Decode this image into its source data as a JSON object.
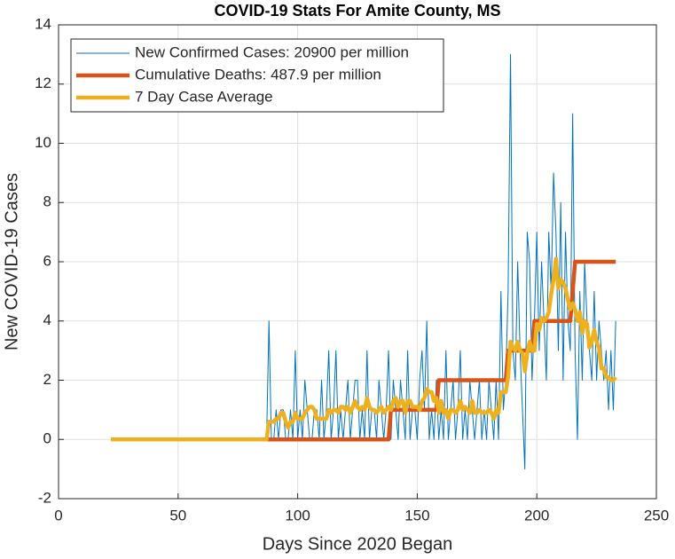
{
  "chart_data": {
    "type": "line",
    "title": "COVID-19 Stats For Amite County, MS",
    "xlabel": "Days Since 2020 Began",
    "ylabel": "New COVID-19 Cases",
    "xlim": [
      0,
      250
    ],
    "xticks": [
      0,
      50,
      100,
      150,
      200,
      250
    ],
    "ylim": [
      -2,
      14
    ],
    "yticks": [
      -2,
      0,
      2,
      4,
      6,
      8,
      10,
      12,
      14
    ],
    "grid": true,
    "legend": "upper left",
    "x": [
      22,
      23,
      24,
      25,
      26,
      27,
      28,
      29,
      30,
      31,
      32,
      33,
      34,
      35,
      36,
      37,
      38,
      39,
      40,
      41,
      42,
      43,
      44,
      45,
      46,
      47,
      48,
      49,
      50,
      51,
      52,
      53,
      54,
      55,
      56,
      57,
      58,
      59,
      60,
      61,
      62,
      63,
      64,
      65,
      66,
      67,
      68,
      69,
      70,
      71,
      72,
      73,
      74,
      75,
      76,
      77,
      78,
      79,
      80,
      81,
      82,
      83,
      84,
      85,
      86,
      87,
      88,
      89,
      90,
      91,
      92,
      93,
      94,
      95,
      96,
      97,
      98,
      99,
      100,
      101,
      102,
      103,
      104,
      105,
      106,
      107,
      108,
      109,
      110,
      111,
      112,
      113,
      114,
      115,
      116,
      117,
      118,
      119,
      120,
      121,
      122,
      123,
      124,
      125,
      126,
      127,
      128,
      129,
      130,
      131,
      132,
      133,
      134,
      135,
      136,
      137,
      138,
      139,
      140,
      141,
      142,
      143,
      144,
      145,
      146,
      147,
      148,
      149,
      150,
      151,
      152,
      153,
      154,
      155,
      156,
      157,
      158,
      159,
      160,
      161,
      162,
      163,
      164,
      165,
      166,
      167,
      168,
      169,
      170,
      171,
      172,
      173,
      174,
      175,
      176,
      177,
      178,
      179,
      180,
      181,
      182,
      183,
      184,
      185,
      186,
      187,
      188,
      189,
      190,
      191,
      192,
      193,
      194,
      195,
      196,
      197,
      198,
      199,
      200,
      201,
      202,
      203,
      204,
      205,
      206,
      207,
      208,
      209,
      210,
      211,
      212,
      213,
      214,
      215,
      216,
      217,
      218,
      219,
      220,
      221,
      222,
      223,
      224,
      225,
      226,
      227,
      228,
      229,
      230,
      231,
      232,
      233
    ],
    "series": [
      {
        "name": "New Confirmed Cases: 20900 per million",
        "color": "#0072BD",
        "values": [
          0,
          0,
          0,
          0,
          0,
          0,
          0,
          0,
          0,
          0,
          0,
          0,
          0,
          0,
          0,
          0,
          0,
          0,
          0,
          0,
          0,
          0,
          0,
          0,
          0,
          0,
          0,
          0,
          0,
          0,
          0,
          0,
          0,
          0,
          0,
          0,
          0,
          0,
          0,
          0,
          0,
          0,
          0,
          0,
          0,
          0,
          0,
          0,
          0,
          0,
          0,
          0,
          0,
          0,
          0,
          0,
          0,
          0,
          0,
          0,
          0,
          0,
          0,
          0,
          0,
          0,
          4,
          0,
          0,
          1,
          0,
          1,
          1,
          0,
          0,
          1,
          0,
          3,
          0,
          1,
          0,
          2,
          1,
          0,
          0,
          1,
          1,
          0,
          2,
          0,
          1,
          3,
          0,
          1,
          3,
          0,
          1,
          0,
          1,
          2,
          0,
          1,
          2,
          2,
          0,
          1,
          0,
          3,
          0,
          1,
          1,
          0,
          2,
          1,
          0,
          1,
          3,
          0,
          2,
          1,
          0,
          2,
          1,
          0,
          3,
          0,
          1,
          1,
          0,
          2,
          3,
          1,
          4,
          0,
          1,
          0,
          2,
          0,
          1,
          0,
          3,
          0,
          1,
          2,
          0,
          1,
          3,
          0,
          1,
          0,
          2,
          1,
          0,
          1,
          2,
          0,
          1,
          0,
          2,
          1,
          0,
          2,
          0,
          5,
          1,
          2,
          5,
          13,
          3,
          2,
          6,
          3,
          1,
          -1,
          7,
          6,
          2,
          4,
          7,
          3,
          6,
          4,
          2,
          7,
          5,
          9,
          7,
          3,
          8,
          2,
          7,
          4,
          3,
          11,
          3,
          0,
          5,
          2,
          6,
          4,
          3,
          2,
          5,
          2,
          4,
          3,
          2,
          3,
          1,
          3,
          1,
          4
        ]
      },
      {
        "name": "Cumulative Deaths: 487.9 per million",
        "color": "#D95319",
        "values": [
          0,
          0,
          0,
          0,
          0,
          0,
          0,
          0,
          0,
          0,
          0,
          0,
          0,
          0,
          0,
          0,
          0,
          0,
          0,
          0,
          0,
          0,
          0,
          0,
          0,
          0,
          0,
          0,
          0,
          0,
          0,
          0,
          0,
          0,
          0,
          0,
          0,
          0,
          0,
          0,
          0,
          0,
          0,
          0,
          0,
          0,
          0,
          0,
          0,
          0,
          0,
          0,
          0,
          0,
          0,
          0,
          0,
          0,
          0,
          0,
          0,
          0,
          0,
          0,
          0,
          0,
          0,
          0,
          0,
          0,
          0,
          0,
          0,
          0,
          0,
          0,
          0,
          0,
          0,
          0,
          0,
          0,
          0,
          0,
          0,
          0,
          0,
          0,
          0,
          0,
          0,
          0,
          0,
          0,
          0,
          0,
          0,
          0,
          0,
          0,
          0,
          0,
          0,
          0,
          0,
          0,
          0,
          0,
          0,
          0,
          0,
          0,
          0,
          0,
          0,
          0,
          0,
          1,
          1,
          1,
          1,
          1,
          1,
          1,
          1,
          1,
          1,
          1,
          1,
          1,
          1,
          1,
          1,
          1,
          1,
          1,
          1,
          2,
          2,
          2,
          2,
          2,
          2,
          2,
          2,
          2,
          2,
          2,
          2,
          2,
          2,
          2,
          2,
          2,
          2,
          2,
          2,
          2,
          2,
          2,
          2,
          2,
          2,
          2,
          2,
          2,
          3,
          3,
          3,
          3,
          3,
          3,
          3,
          3,
          3,
          3,
          3,
          4,
          4,
          4,
          4,
          4,
          4,
          4,
          4,
          4,
          4,
          4,
          4,
          4,
          4,
          4,
          4,
          5,
          6,
          6,
          6,
          6,
          6,
          6,
          6,
          6,
          6,
          6,
          6,
          6,
          6,
          6,
          6,
          6,
          6,
          6
        ]
      },
      {
        "name": "7 Day Case Average",
        "color": "#EDB120",
        "values": [
          0,
          0,
          0,
          0,
          0,
          0,
          0,
          0,
          0,
          0,
          0,
          0,
          0,
          0,
          0,
          0,
          0,
          0,
          0,
          0,
          0,
          0,
          0,
          0,
          0,
          0,
          0,
          0,
          0,
          0,
          0,
          0,
          0,
          0,
          0,
          0,
          0,
          0,
          0,
          0,
          0,
          0,
          0,
          0,
          0,
          0,
          0,
          0,
          0,
          0,
          0,
          0,
          0,
          0,
          0,
          0,
          0,
          0,
          0,
          0,
          0,
          0,
          0,
          0,
          0,
          0,
          0.6,
          0.6,
          0.6,
          0.7,
          0.7,
          0.9,
          0.9,
          0.6,
          0.4,
          0.6,
          0.6,
          0.9,
          0.7,
          0.7,
          0.7,
          0.9,
          1.0,
          1.1,
          1.1,
          1.0,
          0.7,
          0.7,
          0.7,
          0.7,
          0.7,
          1.0,
          0.9,
          1.0,
          1.0,
          0.9,
          1.1,
          1.1,
          1.0,
          1.1,
          0.9,
          1.1,
          1.3,
          1.1,
          1.0,
          1.1,
          1.0,
          1.4,
          1.1,
          1.0,
          1.0,
          0.9,
          1.0,
          1.1,
          0.9,
          1.0,
          1.1,
          1.0,
          1.3,
          1.4,
          1.1,
          1.3,
          1.3,
          0.9,
          1.3,
          1.3,
          1.1,
          1.1,
          1.1,
          1.0,
          1.3,
          1.4,
          1.7,
          1.6,
          1.6,
          1.3,
          1.4,
          0.9,
          1.3,
          0.9,
          1.0,
          0.7,
          1.0,
          1.0,
          0.9,
          1.0,
          1.3,
          1.0,
          1.1,
          1.0,
          0.9,
          1.3,
          0.9,
          0.9,
          1.0,
          0.9,
          0.9,
          0.9,
          1.0,
          0.9,
          0.7,
          1.0,
          0.9,
          1.6,
          1.6,
          1.6,
          2.1,
          3.3,
          3.1,
          3.0,
          3.3,
          3.0,
          2.9,
          2.3,
          2.9,
          3.3,
          3.0,
          3.0,
          3.9,
          3.7,
          4.1,
          4.0,
          4.1,
          4.3,
          4.9,
          5.4,
          6.1,
          5.1,
          5.4,
          5.3,
          5.1,
          4.7,
          4.4,
          4.6,
          4.4,
          4.0,
          4.3,
          3.6,
          4.0,
          3.9,
          3.1,
          3.3,
          3.7,
          3.3,
          3.1,
          2.4,
          2.4,
          2.1,
          2.1,
          2.0,
          2.0,
          2.1
        ]
      }
    ]
  }
}
